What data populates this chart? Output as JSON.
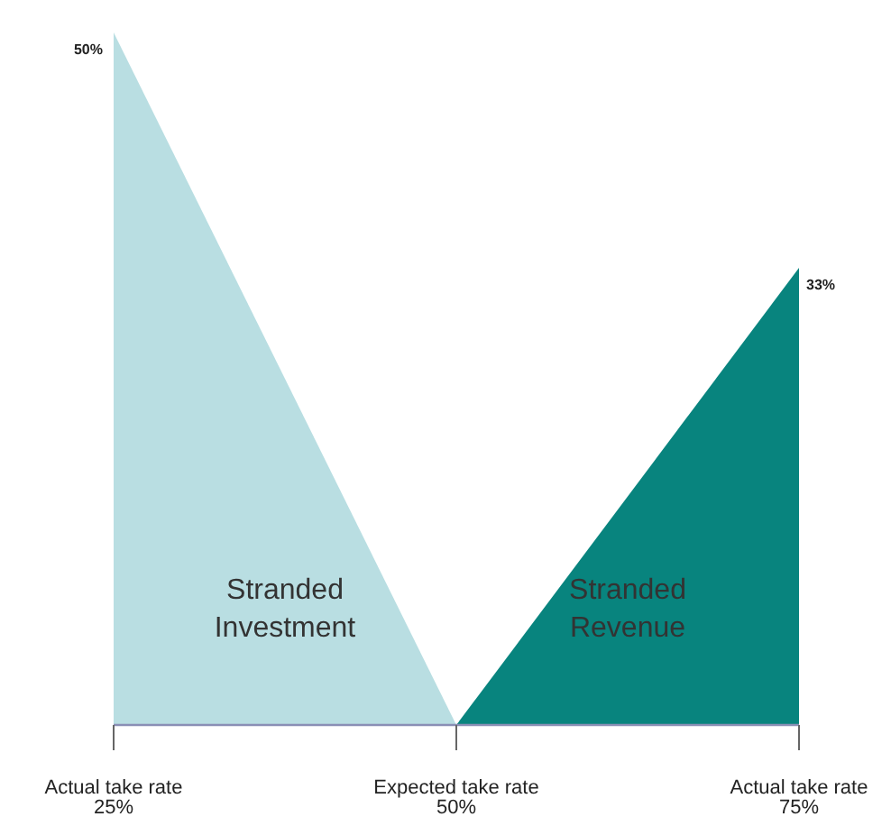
{
  "chart_data": {
    "type": "area",
    "categories": [
      "Actual take rate\n25%",
      "Expected take rate\n50%",
      "Actual take rate\n75%"
    ],
    "series": [
      {
        "name": "Stranded Investment",
        "color": "#b9dee2",
        "values": [
          50,
          0,
          null
        ],
        "value_labels": [
          "50%",
          null,
          null
        ]
      },
      {
        "name": "Stranded Revenue",
        "color": "#08847e",
        "values": [
          null,
          0,
          33
        ],
        "value_labels": [
          null,
          null,
          "33%"
        ]
      }
    ]
  }
}
